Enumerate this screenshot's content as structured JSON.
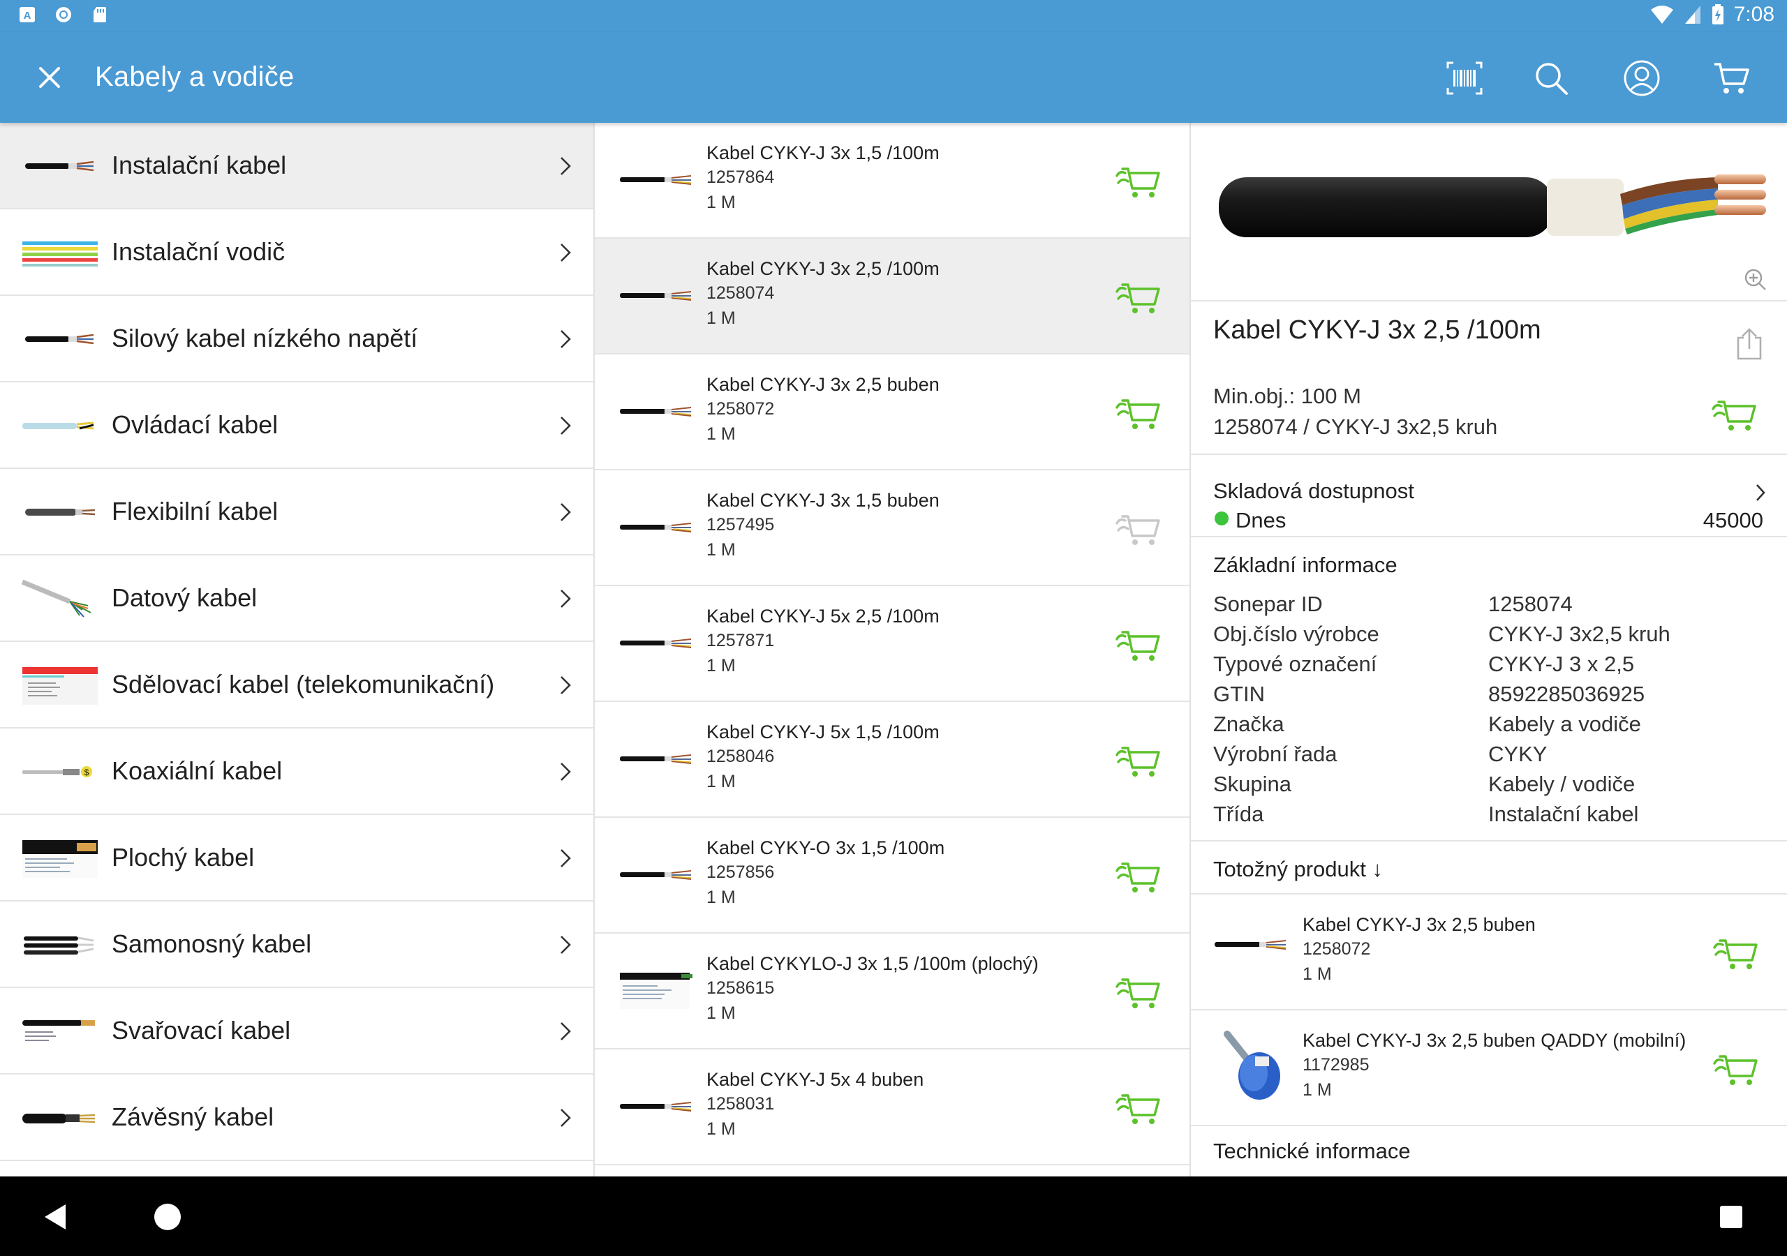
{
  "status": {
    "time": "7:08"
  },
  "appbar": {
    "title": "Kabely a vodiče"
  },
  "colors": {
    "primary": "#4a9ad4",
    "cart_green": "#5cc12a",
    "cart_disabled": "#c8c8c8",
    "dot_green": "#3cc43c"
  },
  "categories": [
    {
      "label": "Instalační kabel",
      "thumb": "cable-thumb",
      "selected": true
    },
    {
      "label": "Instalační vodič",
      "thumb": "wires-thumb"
    },
    {
      "label": "Silový kabel nízkého napětí",
      "thumb": "cable-thumb"
    },
    {
      "label": "Ovládací kabel",
      "thumb": "control-cable-thumb"
    },
    {
      "label": "Flexibilní kabel",
      "thumb": "flex-cable-thumb"
    },
    {
      "label": "Datový kabel",
      "thumb": "data-cable-thumb"
    },
    {
      "label": "Sdělovací kabel (telekomunikační)",
      "thumb": "telecom-thumb"
    },
    {
      "label": "Koaxiální kabel",
      "thumb": "coax-thumb"
    },
    {
      "label": "Plochý kabel",
      "thumb": "flat-cable-thumb"
    },
    {
      "label": "Samonosný kabel",
      "thumb": "self-supporting-thumb"
    },
    {
      "label": "Svařovací kabel",
      "thumb": "welding-cable-thumb"
    },
    {
      "label": "Závěsný kabel",
      "thumb": "suspension-cable-thumb"
    }
  ],
  "products": [
    {
      "name": "Kabel CYKY-J  3x 1,5 /100m",
      "code": "1257864",
      "unit": "1 M",
      "cart": "active"
    },
    {
      "name": "Kabel CYKY-J  3x 2,5 /100m",
      "code": "1258074",
      "unit": "1 M",
      "cart": "active",
      "selected": true
    },
    {
      "name": "Kabel CYKY-J  3x 2,5 buben",
      "code": "1258072",
      "unit": "1 M",
      "cart": "active"
    },
    {
      "name": "Kabel CYKY-J  3x 1,5 buben",
      "code": "1257495",
      "unit": "1 M",
      "cart": "disabled"
    },
    {
      "name": "Kabel CYKY-J  5x 2,5 /100m",
      "code": "1257871",
      "unit": "1 M",
      "cart": "active"
    },
    {
      "name": "Kabel CYKY-J  5x 1,5 /100m",
      "code": "1258046",
      "unit": "1 M",
      "cart": "active"
    },
    {
      "name": "Kabel CYKY-O  3x 1,5 /100m",
      "code": "1257856",
      "unit": "1 M",
      "cart": "active"
    },
    {
      "name": "Kabel CYKYLO-J 3x  1,5 /100m (plochý)",
      "code": "1258615",
      "unit": "1 M",
      "cart": "active"
    },
    {
      "name": "Kabel CYKY-J  5x 4 buben",
      "code": "1258031",
      "unit": "1 M",
      "cart": "active"
    }
  ],
  "detail": {
    "title": "Kabel CYKY-J  3x 2,5 /100m",
    "min_order": "Min.obj.: 100 M",
    "order_code": "1258074 / CYKY-J 3x2,5 kruh",
    "stock_header": "Skladová dostupnost",
    "stock_when": "Dnes",
    "stock_qty": "45000",
    "info_header": "Základní informace",
    "info": [
      {
        "label": "Sonepar ID",
        "value": "1258074"
      },
      {
        "label": "Obj.číslo výrobce",
        "value": "CYKY-J 3x2,5 kruh"
      },
      {
        "label": "Typové označení",
        "value": "CYKY-J 3 x  2,5"
      },
      {
        "label": "GTIN",
        "value": "8592285036925"
      },
      {
        "label": "Značka",
        "value": "Kabely a vodiče"
      },
      {
        "label": "Výrobní řada",
        "value": "CYKY"
      },
      {
        "label": "Skupina",
        "value": "Kabely / vodiče"
      },
      {
        "label": "Třída",
        "value": "Instalační kabel"
      }
    ],
    "identical_header": "Totožný produkt ↓",
    "identical": [
      {
        "name": "Kabel CYKY-J  3x 2,5 buben",
        "code": "1258072",
        "unit": "1 M"
      },
      {
        "name": "Kabel CYKY-J  3x 2,5 buben QADDY (mobilní)",
        "code": "1172985",
        "unit": "1 M"
      }
    ],
    "tech_header": "Technické informace"
  }
}
